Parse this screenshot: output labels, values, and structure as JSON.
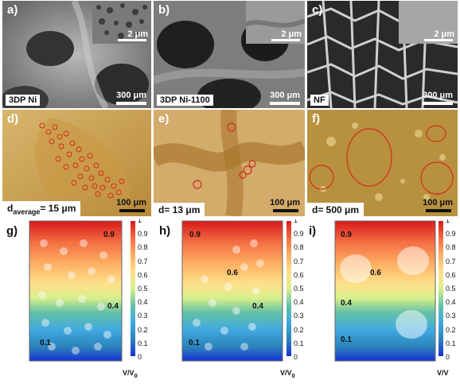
{
  "figure": {
    "row1": [
      {
        "label": "a)",
        "name": "3DP Ni",
        "inset_scale": "2 μm",
        "scale": "300 μm"
      },
      {
        "label": "b)",
        "name": "3DP Ni-1100",
        "inset_scale": "2 μm",
        "scale": "300 μm"
      },
      {
        "label": "c)",
        "name": "NF",
        "inset_scale": "2 μm",
        "scale": "300 μm"
      }
    ],
    "row2": [
      {
        "label": "d)",
        "d_prefix": "d",
        "d_sub": "average",
        "d_value": "= 15 μm",
        "scale": "100 μm"
      },
      {
        "label": "e)",
        "d_text": "d= 13 μm",
        "scale": "100 μm"
      },
      {
        "label": "f)",
        "d_text": "d= 500 μm",
        "scale": "100 μm"
      }
    ],
    "row3": [
      {
        "label": "g)",
        "iso": [
          "0.9",
          "0.4",
          "0.1"
        ]
      },
      {
        "label": "h)",
        "iso": [
          "0.9",
          "0.6",
          "0.4",
          "0.1"
        ]
      },
      {
        "label": "i)",
        "iso": [
          "0.9",
          "0.6",
          "0.4",
          "0.1"
        ]
      }
    ],
    "colorbar": {
      "ticks": [
        "1",
        "0.9",
        "0.8",
        "0.7",
        "0.6",
        "0.5",
        "0.4",
        "0.3",
        "0.2",
        "0.1",
        "0"
      ],
      "label_main": "V/V",
      "label_sub": "0",
      "label_partial": "V/V"
    }
  },
  "colors": {
    "sem_gray": "#8c8c8c",
    "optical_gold": "#c9a35a",
    "circle_red": "#d12c1d",
    "cb_top": "#d7191c",
    "cb_bottom": "#1a33d6"
  }
}
